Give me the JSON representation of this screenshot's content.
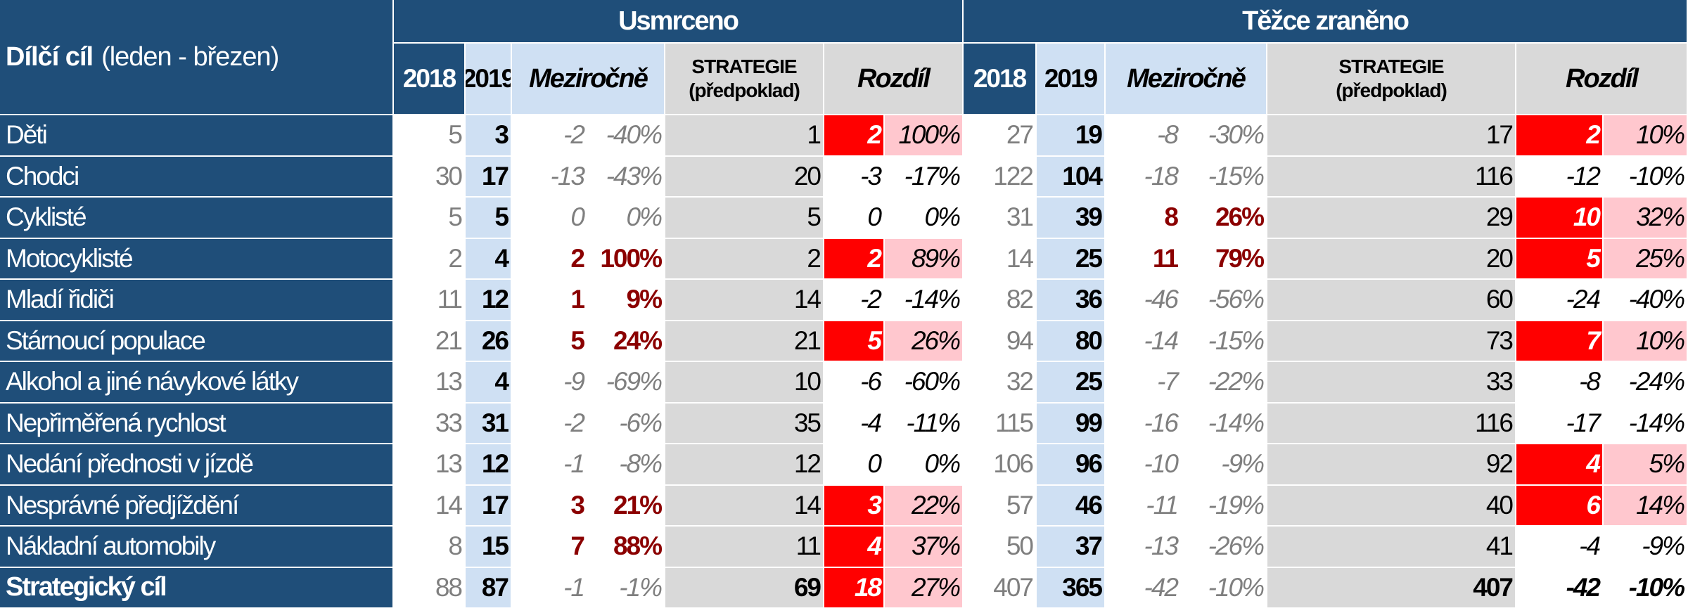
{
  "header": {
    "corner_title": "Dílčí cíl",
    "corner_sub": "(leden - březen)",
    "group_killed": "Usmrceno",
    "group_injured": "Těžce zraněno",
    "col_2018": "2018",
    "col_2019": "2019",
    "col_yoy": "Meziročně",
    "col_strategy_l1": "STRATEGIE",
    "col_strategy_l2": "(předpoklad)",
    "col_diff": "Rozdíl"
  },
  "rows": [
    {
      "label": "Děti",
      "k2018": "5",
      "k2019": "3",
      "kyd": "-2",
      "kyp": "-40%",
      "kst": "1",
      "kdd": "2",
      "kdp": "100%",
      "i2018": "27",
      "i2019": "19",
      "iyd": "-8",
      "iyp": "-30%",
      "ist": "17",
      "idd": "2",
      "idp": "10%"
    },
    {
      "label": "Chodci",
      "k2018": "30",
      "k2019": "17",
      "kyd": "-13",
      "kyp": "-43%",
      "kst": "20",
      "kdd": "-3",
      "kdp": "-17%",
      "i2018": "122",
      "i2019": "104",
      "iyd": "-18",
      "iyp": "-15%",
      "ist": "116",
      "idd": "-12",
      "idp": "-10%"
    },
    {
      "label": "Cyklisté",
      "k2018": "5",
      "k2019": "5",
      "kyd": "0",
      "kyp": "0%",
      "kst": "5",
      "kdd": "0",
      "kdp": "0%",
      "i2018": "31",
      "i2019": "39",
      "iyd": "8",
      "iyp": "26%",
      "ist": "29",
      "idd": "10",
      "idp": "32%"
    },
    {
      "label": "Motocyklisté",
      "k2018": "2",
      "k2019": "4",
      "kyd": "2",
      "kyp": "100%",
      "kst": "2",
      "kdd": "2",
      "kdp": "89%",
      "i2018": "14",
      "i2019": "25",
      "iyd": "11",
      "iyp": "79%",
      "ist": "20",
      "idd": "5",
      "idp": "25%"
    },
    {
      "label": "Mladí řidiči",
      "k2018": "11",
      "k2019": "12",
      "kyd": "1",
      "kyp": "9%",
      "kst": "14",
      "kdd": "-2",
      "kdp": "-14%",
      "i2018": "82",
      "i2019": "36",
      "iyd": "-46",
      "iyp": "-56%",
      "ist": "60",
      "idd": "-24",
      "idp": "-40%"
    },
    {
      "label": "Stárnoucí populace",
      "k2018": "21",
      "k2019": "26",
      "kyd": "5",
      "kyp": "24%",
      "kst": "21",
      "kdd": "5",
      "kdp": "26%",
      "i2018": "94",
      "i2019": "80",
      "iyd": "-14",
      "iyp": "-15%",
      "ist": "73",
      "idd": "7",
      "idp": "10%"
    },
    {
      "label": "Alkohol a jiné návykové látky",
      "k2018": "13",
      "k2019": "4",
      "kyd": "-9",
      "kyp": "-69%",
      "kst": "10",
      "kdd": "-6",
      "kdp": "-60%",
      "i2018": "32",
      "i2019": "25",
      "iyd": "-7",
      "iyp": "-22%",
      "ist": "33",
      "idd": "-8",
      "idp": "-24%"
    },
    {
      "label": "Nepřiměřená rychlost",
      "k2018": "33",
      "k2019": "31",
      "kyd": "-2",
      "kyp": "-6%",
      "kst": "35",
      "kdd": "-4",
      "kdp": "-11%",
      "i2018": "115",
      "i2019": "99",
      "iyd": "-16",
      "iyp": "-14%",
      "ist": "116",
      "idd": "-17",
      "idp": "-14%"
    },
    {
      "label": "Nedání přednosti v jízdě",
      "k2018": "13",
      "k2019": "12",
      "kyd": "-1",
      "kyp": "-8%",
      "kst": "12",
      "kdd": "0",
      "kdp": "0%",
      "i2018": "106",
      "i2019": "96",
      "iyd": "-10",
      "iyp": "-9%",
      "ist": "92",
      "idd": "4",
      "idp": "5%"
    },
    {
      "label": "Nesprávné předjíždění",
      "k2018": "14",
      "k2019": "17",
      "kyd": "3",
      "kyp": "21%",
      "kst": "14",
      "kdd": "3",
      "kdp": "22%",
      "i2018": "57",
      "i2019": "46",
      "iyd": "-11",
      "iyp": "-19%",
      "ist": "40",
      "idd": "6",
      "idp": "14%"
    },
    {
      "label": "Nákladní automobily",
      "k2018": "8",
      "k2019": "15",
      "kyd": "7",
      "kyp": "88%",
      "kst": "11",
      "kdd": "4",
      "kdp": "37%",
      "i2018": "50",
      "i2019": "37",
      "iyd": "-13",
      "iyp": "-26%",
      "ist": "41",
      "idd": "-4",
      "idp": "-9%"
    },
    {
      "label": "Strategický cíl",
      "k2018": "88",
      "k2019": "87",
      "kyd": "-1",
      "kyp": "-1%",
      "kst": "69",
      "kdd": "18",
      "kdp": "27%",
      "i2018": "407",
      "i2019": "365",
      "iyd": "-42",
      "iyp": "-10%",
      "ist": "407",
      "idd": "-42",
      "idp": "-10%"
    }
  ],
  "colors": {
    "navy": "#1f4e79",
    "light_blue": "#cfe0f3",
    "grey": "#d9d9d9",
    "red": "#ff0000",
    "pink": "#ffc7ce",
    "maroon": "#8b0000"
  }
}
